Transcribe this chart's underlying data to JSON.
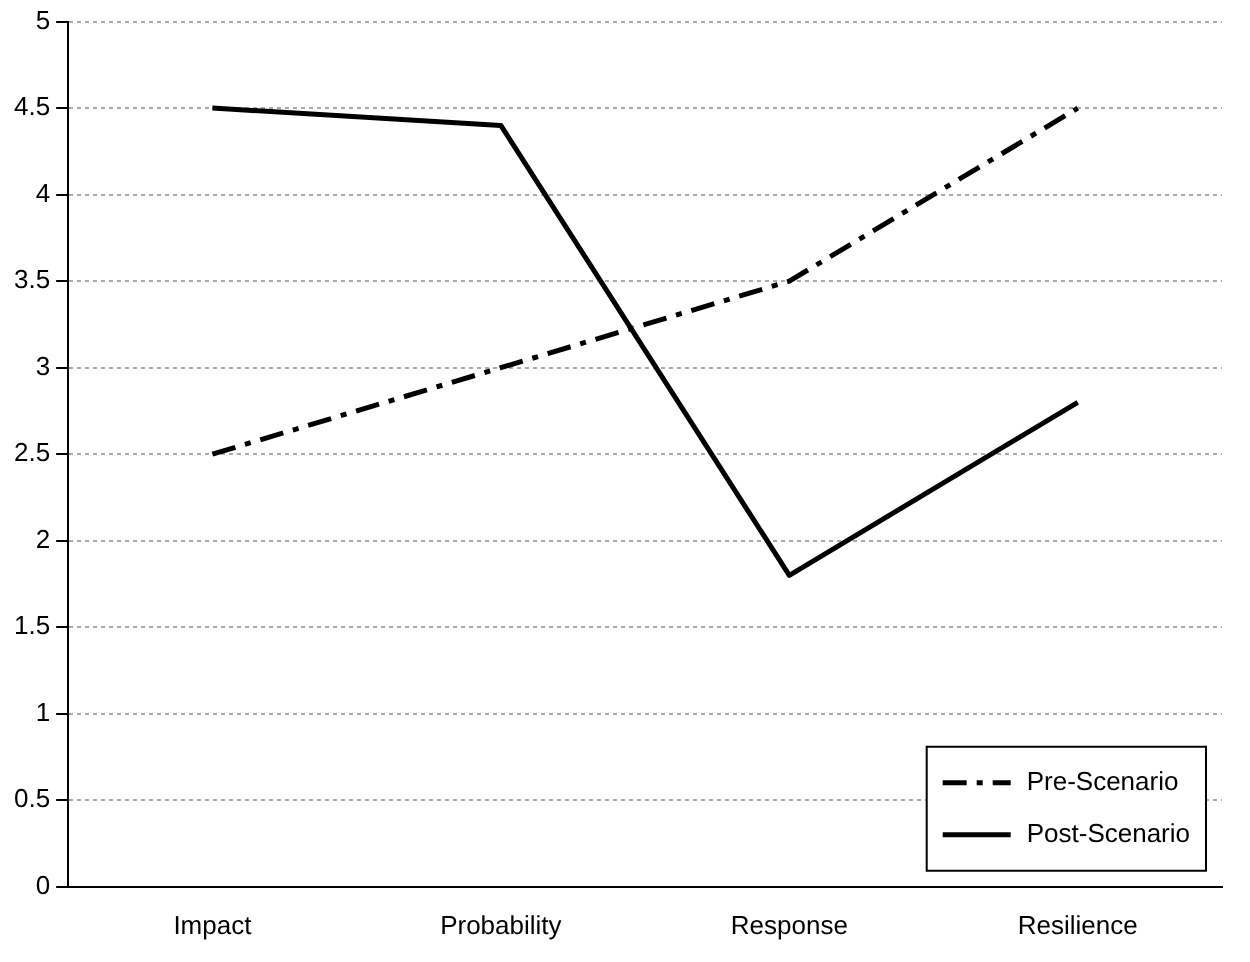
{
  "chart_data": {
    "type": "line",
    "categories": [
      "Impact",
      "Probability",
      "Response",
      "Resilience"
    ],
    "series": [
      {
        "name": "Pre-Scenario",
        "color": "#000000",
        "values": [
          2.5,
          3.0,
          3.5,
          4.5
        ],
        "line_style": "dashed"
      },
      {
        "name": "Post-Scenario",
        "color": "#000000",
        "values": [
          4.5,
          4.4,
          1.8,
          2.8
        ],
        "line_style": "solid"
      }
    ],
    "ylim": [
      0,
      5
    ],
    "yticks": [
      0,
      0.5,
      1,
      1.5,
      2,
      2.5,
      3,
      3.5,
      4,
      4.5,
      5
    ],
    "grid": "y",
    "legend": "bottom right",
    "marker": "none"
  }
}
